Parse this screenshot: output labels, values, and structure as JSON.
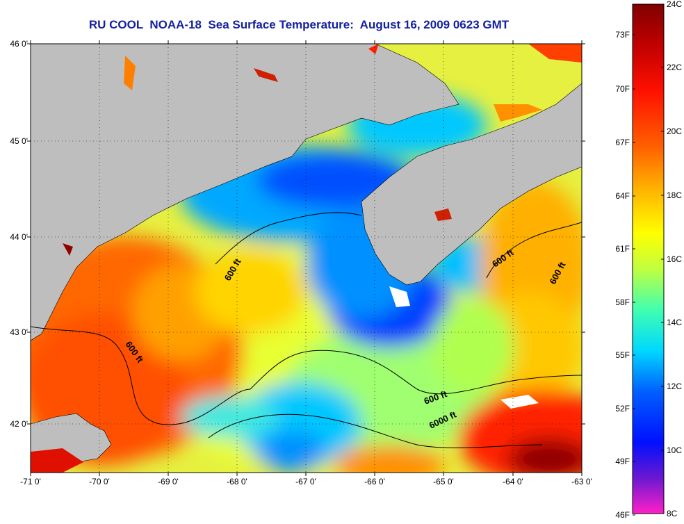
{
  "title": "RU COOL  NOAA-18  Sea Surface Temperature:  August 16, 2009 0623 GMT",
  "map": {
    "lat_labels": [
      "46 0'",
      "45 0'",
      "44 0'",
      "43 0'",
      "42 0'"
    ],
    "lon_labels": [
      "-71 0'",
      "-70 0'",
      "-69 0'",
      "-68 0'",
      "-67 0'",
      "-66 0'",
      "-65 0'",
      "-64 0'",
      "-63 0'"
    ],
    "land_color": "#bebebe"
  },
  "contours": [
    {
      "label": "600 ft"
    },
    {
      "label": "600 ft"
    },
    {
      "label": "600 ft"
    },
    {
      "label": "600 ft"
    },
    {
      "label": "600 ft"
    },
    {
      "label": "6000 ft"
    }
  ],
  "colorbar": {
    "fahrenheit_labels": [
      "73F",
      "70F",
      "67F",
      "64F",
      "61F",
      "58F",
      "55F",
      "52F",
      "49F",
      "46F"
    ],
    "celsius_labels": [
      "24C",
      "22C",
      "20C",
      "18C",
      "16C",
      "14C",
      "12C",
      "10C",
      "8C"
    ],
    "colors": [
      "#ff20c8",
      "#6a18d0",
      "#0010ff",
      "#0060ff",
      "#00d8ff",
      "#40ffb0",
      "#c0ff40",
      "#ffff00",
      "#ffb000",
      "#ff6000",
      "#ff1000",
      "#c00000",
      "#800000"
    ]
  }
}
